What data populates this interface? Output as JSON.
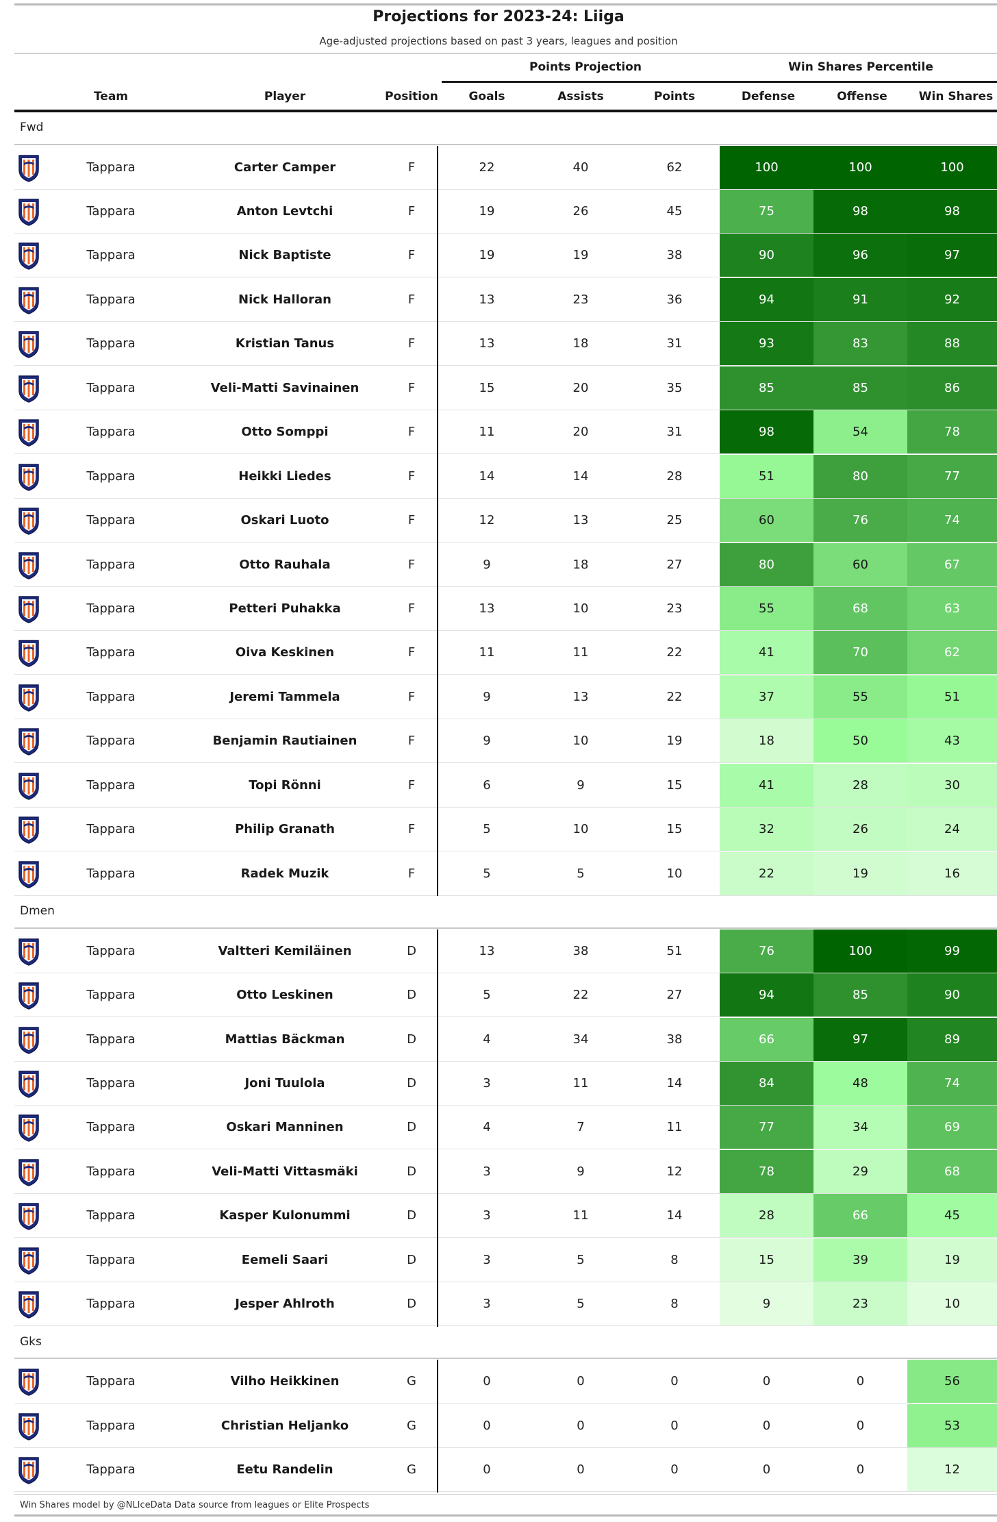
{
  "title": "Projections for 2023-24: Liiga",
  "subtitle": "Age-adjusted projections based on past 3 years, leagues and position",
  "spanners": {
    "points_projection": "Points Projection",
    "win_shares_percentile": "Win Shares Percentile"
  },
  "columns": {
    "team": "Team",
    "player": "Player",
    "position": "Position",
    "goals": "Goals",
    "assists": "Assists",
    "points": "Points",
    "defense": "Defense",
    "offense": "Offense",
    "win_shares": "Win Shares"
  },
  "logo_icon": "tappara-shield-icon",
  "colors": {
    "heat_low": "#f2fdf0",
    "heat_mid": "#98fb98",
    "heat_high": "#006400",
    "rule": "#111111"
  },
  "groups": [
    {
      "label": "Fwd",
      "rows": [
        {
          "team": "Tappara",
          "player": "Carter Camper",
          "pos": "F",
          "goals": "22",
          "assists": "40",
          "points": "62",
          "defense": 100,
          "offense": 100,
          "win_shares": 100
        },
        {
          "team": "Tappara",
          "player": "Anton Levtchi",
          "pos": "F",
          "goals": "19",
          "assists": "26",
          "points": "45",
          "defense": 75,
          "offense": 98,
          "win_shares": 98
        },
        {
          "team": "Tappara",
          "player": "Nick Baptiste",
          "pos": "F",
          "goals": "19",
          "assists": "19",
          "points": "38",
          "defense": 90,
          "offense": 96,
          "win_shares": 97
        },
        {
          "team": "Tappara",
          "player": "Nick Halloran",
          "pos": "F",
          "goals": "13",
          "assists": "23",
          "points": "36",
          "defense": 94,
          "offense": 91,
          "win_shares": 92
        },
        {
          "team": "Tappara",
          "player": "Kristian Tanus",
          "pos": "F",
          "goals": "13",
          "assists": "18",
          "points": "31",
          "defense": 93,
          "offense": 83,
          "win_shares": 88
        },
        {
          "team": "Tappara",
          "player": "Veli-Matti Savinainen",
          "pos": "F",
          "goals": "15",
          "assists": "20",
          "points": "35",
          "defense": 85,
          "offense": 85,
          "win_shares": 86
        },
        {
          "team": "Tappara",
          "player": "Otto Somppi",
          "pos": "F",
          "goals": "11",
          "assists": "20",
          "points": "31",
          "defense": 98,
          "offense": 54,
          "win_shares": 78
        },
        {
          "team": "Tappara",
          "player": "Heikki Liedes",
          "pos": "F",
          "goals": "14",
          "assists": "14",
          "points": "28",
          "defense": 51,
          "offense": 80,
          "win_shares": 77
        },
        {
          "team": "Tappara",
          "player": "Oskari Luoto",
          "pos": "F",
          "goals": "12",
          "assists": "13",
          "points": "25",
          "defense": 60,
          "offense": 76,
          "win_shares": 74
        },
        {
          "team": "Tappara",
          "player": "Otto Rauhala",
          "pos": "F",
          "goals": "9",
          "assists": "18",
          "points": "27",
          "defense": 80,
          "offense": 60,
          "win_shares": 67
        },
        {
          "team": "Tappara",
          "player": "Petteri Puhakka",
          "pos": "F",
          "goals": "13",
          "assists": "10",
          "points": "23",
          "defense": 55,
          "offense": 68,
          "win_shares": 63
        },
        {
          "team": "Tappara",
          "player": "Oiva Keskinen",
          "pos": "F",
          "goals": "11",
          "assists": "11",
          "points": "22",
          "defense": 41,
          "offense": 70,
          "win_shares": 62
        },
        {
          "team": "Tappara",
          "player": "Jeremi Tammela",
          "pos": "F",
          "goals": "9",
          "assists": "13",
          "points": "22",
          "defense": 37,
          "offense": 55,
          "win_shares": 51
        },
        {
          "team": "Tappara",
          "player": "Benjamin Rautiainen",
          "pos": "F",
          "goals": "9",
          "assists": "10",
          "points": "19",
          "defense": 18,
          "offense": 50,
          "win_shares": 43
        },
        {
          "team": "Tappara",
          "player": "Topi Rönni",
          "pos": "F",
          "goals": "6",
          "assists": "9",
          "points": "15",
          "defense": 41,
          "offense": 28,
          "win_shares": 30
        },
        {
          "team": "Tappara",
          "player": "Philip Granath",
          "pos": "F",
          "goals": "5",
          "assists": "10",
          "points": "15",
          "defense": 32,
          "offense": 26,
          "win_shares": 24
        },
        {
          "team": "Tappara",
          "player": "Radek Muzik",
          "pos": "F",
          "goals": "5",
          "assists": "5",
          "points": "10",
          "defense": 22,
          "offense": 19,
          "win_shares": 16
        }
      ]
    },
    {
      "label": "Dmen",
      "rows": [
        {
          "team": "Tappara",
          "player": "Valtteri Kemiläinen",
          "pos": "D",
          "goals": "13",
          "assists": "38",
          "points": "51",
          "defense": 76,
          "offense": 100,
          "win_shares": 99
        },
        {
          "team": "Tappara",
          "player": "Otto Leskinen",
          "pos": "D",
          "goals": "5",
          "assists": "22",
          "points": "27",
          "defense": 94,
          "offense": 85,
          "win_shares": 90
        },
        {
          "team": "Tappara",
          "player": "Mattias Bäckman",
          "pos": "D",
          "goals": "4",
          "assists": "34",
          "points": "38",
          "defense": 66,
          "offense": 97,
          "win_shares": 89
        },
        {
          "team": "Tappara",
          "player": "Joni Tuulola",
          "pos": "D",
          "goals": "3",
          "assists": "11",
          "points": "14",
          "defense": 84,
          "offense": 48,
          "win_shares": 74
        },
        {
          "team": "Tappara",
          "player": "Oskari Manninen",
          "pos": "D",
          "goals": "4",
          "assists": "7",
          "points": "11",
          "defense": 77,
          "offense": 34,
          "win_shares": 69
        },
        {
          "team": "Tappara",
          "player": "Veli-Matti Vittasmäki",
          "pos": "D",
          "goals": "3",
          "assists": "9",
          "points": "12",
          "defense": 78,
          "offense": 29,
          "win_shares": 68
        },
        {
          "team": "Tappara",
          "player": "Kasper Kulonummi",
          "pos": "D",
          "goals": "3",
          "assists": "11",
          "points": "14",
          "defense": 28,
          "offense": 66,
          "win_shares": 45
        },
        {
          "team": "Tappara",
          "player": "Eemeli Saari",
          "pos": "D",
          "goals": "3",
          "assists": "5",
          "points": "8",
          "defense": 15,
          "offense": 39,
          "win_shares": 19
        },
        {
          "team": "Tappara",
          "player": "Jesper Ahlroth",
          "pos": "D",
          "goals": "3",
          "assists": "5",
          "points": "8",
          "defense": 9,
          "offense": 23,
          "win_shares": 10
        }
      ]
    },
    {
      "label": "Gks",
      "rows": [
        {
          "team": "Tappara",
          "player": "Vilho Heikkinen",
          "pos": "G",
          "goals": "0",
          "assists": "0",
          "points": "0",
          "defense": "0",
          "offense": "0",
          "win_shares": 56
        },
        {
          "team": "Tappara",
          "player": "Christian Heljanko",
          "pos": "G",
          "goals": "0",
          "assists": "0",
          "points": "0",
          "defense": "0",
          "offense": "0",
          "win_shares": 53
        },
        {
          "team": "Tappara",
          "player": "Eetu Randelin",
          "pos": "G",
          "goals": "0",
          "assists": "0",
          "points": "0",
          "defense": "0",
          "offense": "0",
          "win_shares": 12
        }
      ]
    }
  ],
  "footer": "Win Shares model by @NLIceData Data source from leagues or Elite Prospects"
}
